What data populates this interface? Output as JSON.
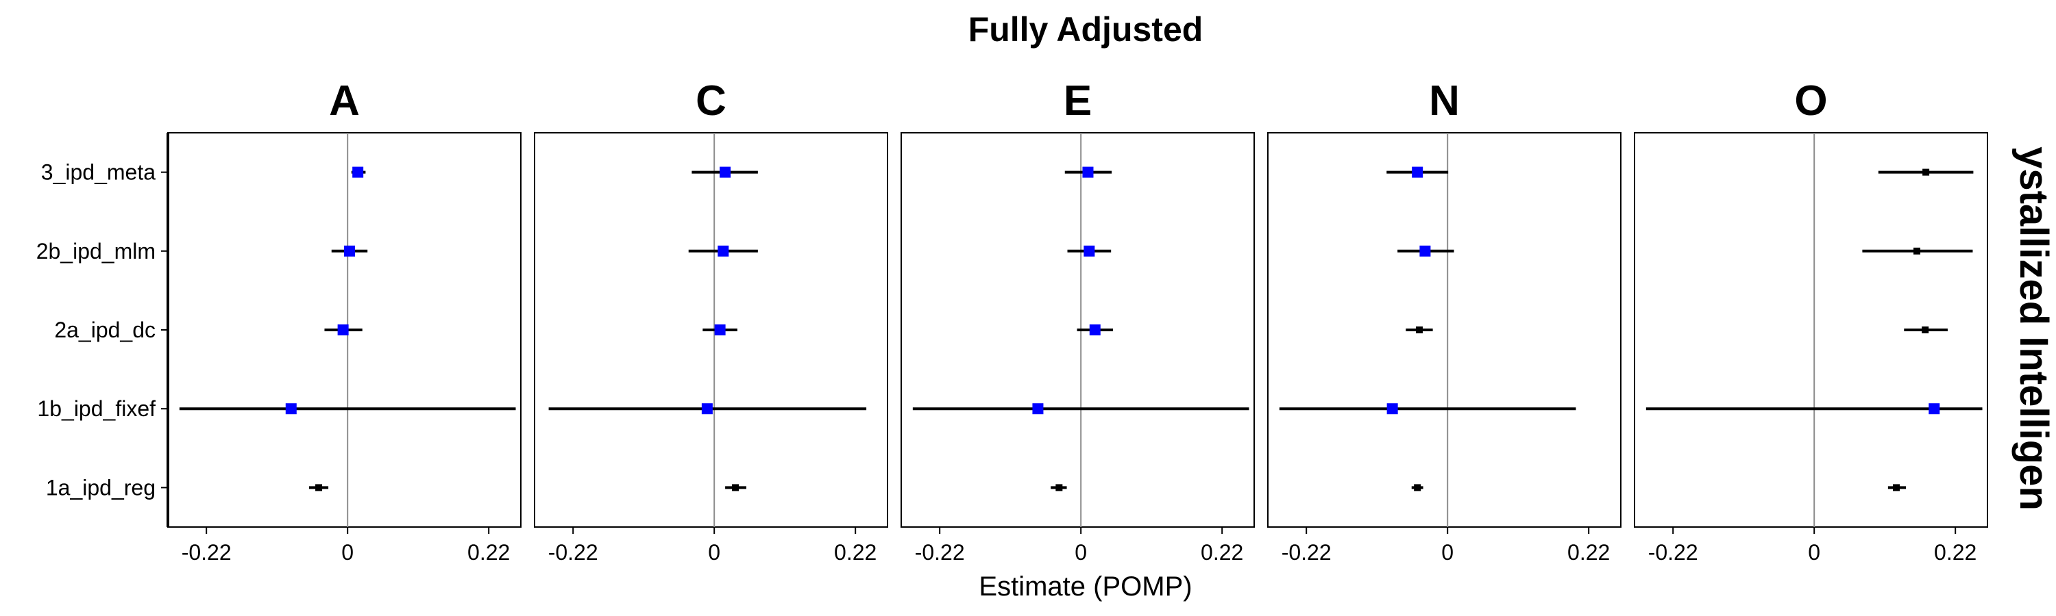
{
  "chart_data": {
    "type": "forest",
    "title": "Fully Adjusted",
    "xlabel": "Estimate (POMP)",
    "ylabel": "",
    "strip_label": "ystallized Intelligen",
    "xlim": [
      -0.28,
      0.27
    ],
    "x_ticks": [
      -0.22,
      0,
      0.22
    ],
    "x_tick_labels": [
      "-0.22",
      "0",
      "0.22"
    ],
    "reference_line": 0,
    "grid": false,
    "point_colors": {
      "meta_analysis": "#0000ff",
      "regression": "#000000"
    },
    "categories": [
      "3_ipd_meta",
      "2b_ipd_mlm",
      "2a_ipd_dc",
      "1b_ipd_fixef",
      "1a_ipd_reg"
    ],
    "facets": [
      {
        "name": "A",
        "estimates": [
          {
            "label": "3_ipd_meta",
            "est": 0.016,
            "lo": 0.006,
            "hi": 0.028,
            "color": "#0000ff"
          },
          {
            "label": "2b_ipd_mlm",
            "est": 0.003,
            "lo": -0.025,
            "hi": 0.031,
            "color": "#0000ff"
          },
          {
            "label": "2a_ipd_dc",
            "est": -0.007,
            "lo": -0.036,
            "hi": 0.023,
            "color": "#0000ff"
          },
          {
            "label": "1b_ipd_fixef",
            "est": -0.088,
            "lo": -0.262,
            "hi": 0.262,
            "color": "#0000ff"
          },
          {
            "label": "1a_ipd_reg",
            "est": -0.045,
            "lo": -0.06,
            "hi": -0.03,
            "color": "#000000"
          }
        ]
      },
      {
        "name": "C",
        "estimates": [
          {
            "label": "3_ipd_meta",
            "est": 0.017,
            "lo": -0.035,
            "hi": 0.068,
            "color": "#0000ff"
          },
          {
            "label": "2b_ipd_mlm",
            "est": 0.014,
            "lo": -0.04,
            "hi": 0.068,
            "color": "#0000ff"
          },
          {
            "label": "2a_ipd_dc",
            "est": 0.009,
            "lo": -0.018,
            "hi": 0.036,
            "color": "#0000ff"
          },
          {
            "label": "1b_ipd_fixef",
            "est": -0.011,
            "lo": -0.258,
            "hi": 0.237,
            "color": "#0000ff"
          },
          {
            "label": "1a_ipd_reg",
            "est": 0.033,
            "lo": 0.017,
            "hi": 0.05,
            "color": "#000000"
          }
        ]
      },
      {
        "name": "E",
        "estimates": [
          {
            "label": "3_ipd_meta",
            "est": 0.011,
            "lo": -0.025,
            "hi": 0.048,
            "color": "#0000ff"
          },
          {
            "label": "2b_ipd_mlm",
            "est": 0.013,
            "lo": -0.021,
            "hi": 0.047,
            "color": "#0000ff"
          },
          {
            "label": "2a_ipd_dc",
            "est": 0.022,
            "lo": -0.006,
            "hi": 0.05,
            "color": "#0000ff"
          },
          {
            "label": "1b_ipd_fixef",
            "est": -0.067,
            "lo": -0.262,
            "hi": 0.262,
            "color": "#0000ff"
          },
          {
            "label": "1a_ipd_reg",
            "est": -0.034,
            "lo": -0.047,
            "hi": -0.022,
            "color": "#000000"
          }
        ]
      },
      {
        "name": "N",
        "estimates": [
          {
            "label": "3_ipd_meta",
            "est": -0.047,
            "lo": -0.095,
            "hi": 0.001,
            "color": "#0000ff"
          },
          {
            "label": "2b_ipd_mlm",
            "est": -0.035,
            "lo": -0.078,
            "hi": 0.01,
            "color": "#0000ff"
          },
          {
            "label": "2a_ipd_dc",
            "est": -0.044,
            "lo": -0.065,
            "hi": -0.023,
            "color": "#000000"
          },
          {
            "label": "1b_ipd_fixef",
            "est": -0.086,
            "lo": -0.262,
            "hi": 0.2,
            "color": "#0000ff"
          },
          {
            "label": "1a_ipd_reg",
            "est": -0.047,
            "lo": -0.056,
            "hi": -0.038,
            "color": "#000000"
          }
        ]
      },
      {
        "name": "O",
        "estimates": [
          {
            "label": "3_ipd_meta",
            "est": 0.174,
            "lo": 0.1,
            "hi": 0.248,
            "color": "#000000"
          },
          {
            "label": "2b_ipd_mlm",
            "est": 0.16,
            "lo": 0.075,
            "hi": 0.247,
            "color": "#000000"
          },
          {
            "label": "2a_ipd_dc",
            "est": 0.173,
            "lo": 0.14,
            "hi": 0.208,
            "color": "#000000"
          },
          {
            "label": "1b_ipd_fixef",
            "est": 0.187,
            "lo": -0.262,
            "hi": 0.262,
            "color": "#0000ff"
          },
          {
            "label": "1a_ipd_reg",
            "est": 0.128,
            "lo": 0.115,
            "hi": 0.143,
            "color": "#000000"
          }
        ]
      }
    ]
  }
}
